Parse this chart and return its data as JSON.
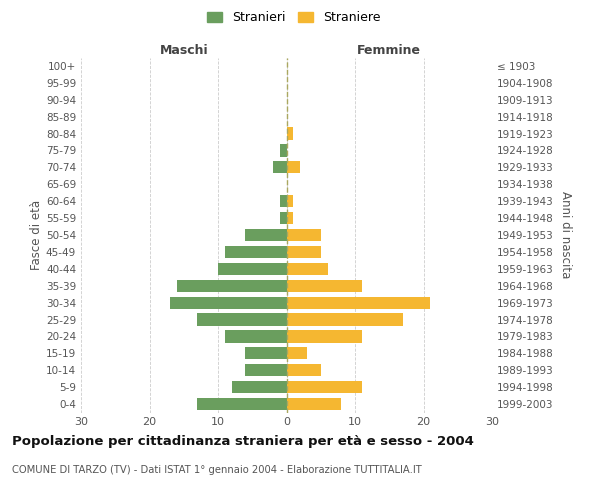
{
  "age_groups": [
    "100+",
    "95-99",
    "90-94",
    "85-89",
    "80-84",
    "75-79",
    "70-74",
    "65-69",
    "60-64",
    "55-59",
    "50-54",
    "45-49",
    "40-44",
    "35-39",
    "30-34",
    "25-29",
    "20-24",
    "15-19",
    "10-14",
    "5-9",
    "0-4"
  ],
  "birth_years": [
    "≤ 1903",
    "1904-1908",
    "1909-1913",
    "1914-1918",
    "1919-1923",
    "1924-1928",
    "1929-1933",
    "1934-1938",
    "1939-1943",
    "1944-1948",
    "1949-1953",
    "1954-1958",
    "1959-1963",
    "1964-1968",
    "1969-1973",
    "1974-1978",
    "1979-1983",
    "1984-1988",
    "1989-1993",
    "1994-1998",
    "1999-2003"
  ],
  "maschi": [
    0,
    0,
    0,
    0,
    0,
    1,
    2,
    0,
    1,
    1,
    6,
    9,
    10,
    16,
    17,
    13,
    9,
    6,
    6,
    8,
    13
  ],
  "femmine": [
    0,
    0,
    0,
    0,
    1,
    0,
    2,
    0,
    1,
    1,
    5,
    5,
    6,
    11,
    21,
    17,
    11,
    3,
    5,
    11,
    8
  ],
  "maschi_color": "#6a9e5e",
  "femmine_color": "#f5b731",
  "background_color": "#ffffff",
  "grid_color": "#cccccc",
  "title": "Popolazione per cittadinanza straniera per età e sesso - 2004",
  "subtitle": "COMUNE DI TARZO (TV) - Dati ISTAT 1° gennaio 2004 - Elaborazione TUTTITALIA.IT",
  "ylabel_left": "Fasce di età",
  "ylabel_right": "Anni di nascita",
  "xlabel_maschi": "Maschi",
  "xlabel_femmine": "Femmine",
  "legend_stranieri": "Stranieri",
  "legend_straniere": "Straniere",
  "xlim": 30
}
